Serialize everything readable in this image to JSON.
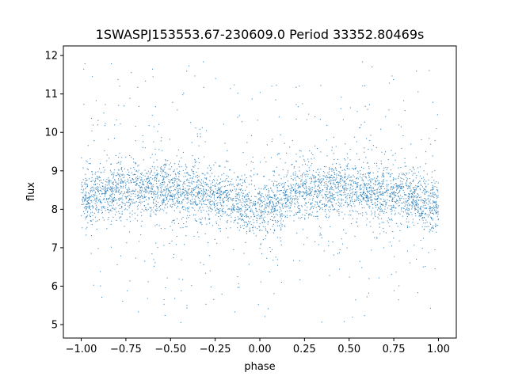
{
  "chart_data": {
    "type": "scatter",
    "title": "1SWASPJ153553.67-230609.0 Period 33352.80469s",
    "xlabel": "phase",
    "ylabel": "flux",
    "xlim": [
      -1.1,
      1.1
    ],
    "ylim": [
      4.65,
      12.25
    ],
    "xticks": [
      -1.0,
      -0.75,
      -0.5,
      -0.25,
      0.0,
      0.25,
      0.5,
      0.75,
      1.0
    ],
    "xtick_labels": [
      "−1.00",
      "−0.75",
      "−0.50",
      "−0.25",
      "0.00",
      "0.25",
      "0.50",
      "0.75",
      "1.00"
    ],
    "yticks": [
      5,
      6,
      7,
      8,
      9,
      10,
      11,
      12
    ],
    "ytick_labels": [
      "5",
      "6",
      "7",
      "8",
      "9",
      "10",
      "11",
      "12"
    ],
    "grid": false,
    "legend": "none",
    "marker_color": "#1f77b4",
    "phase_range": [
      -1.0,
      1.0
    ],
    "flux_range": [
      5.0,
      11.85
    ],
    "band_center_profile": {
      "phase": [
        -1.0,
        -0.75,
        -0.5,
        -0.25,
        0.0,
        0.25,
        0.5,
        0.75,
        1.0
      ],
      "flux": [
        8.3,
        8.55,
        8.5,
        8.35,
        8.0,
        8.45,
        8.55,
        8.4,
        8.1
      ]
    },
    "band_halfwidth": 0.5
  }
}
